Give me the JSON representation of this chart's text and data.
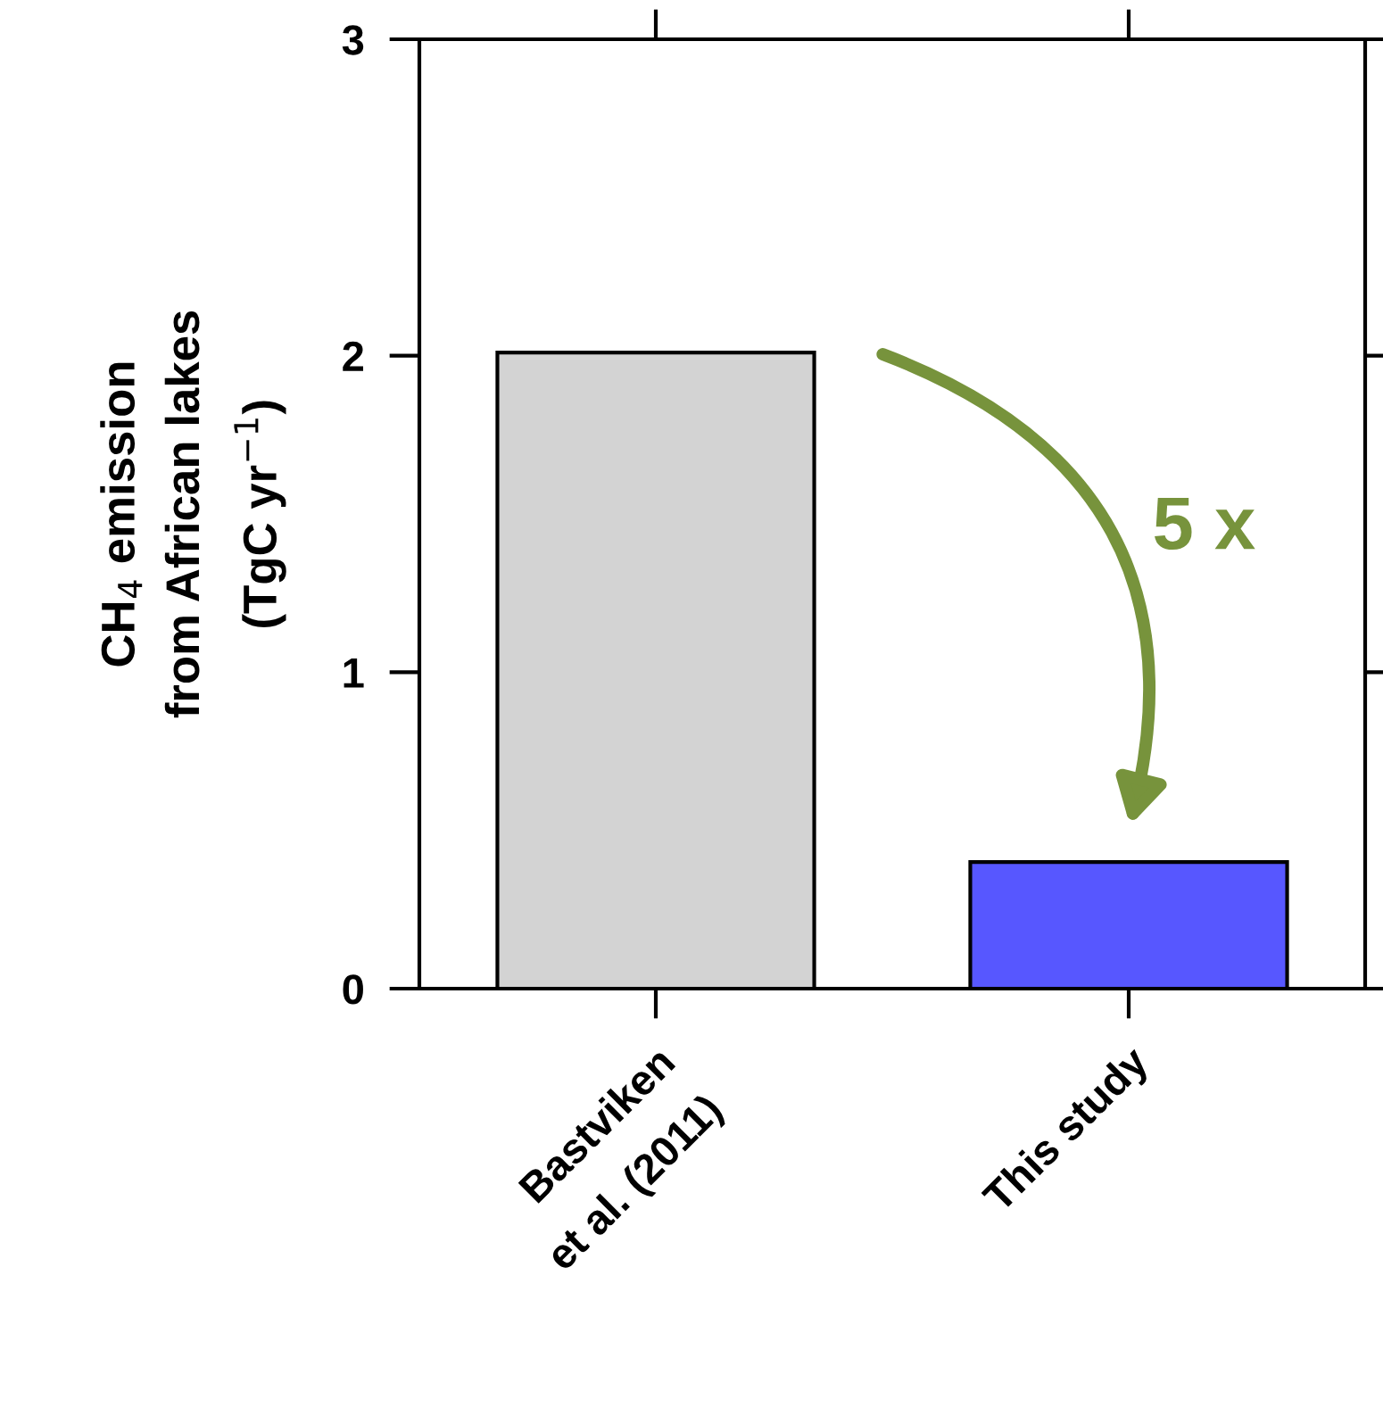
{
  "chart_data": {
    "type": "bar",
    "ylabel": "CH$_{4}$ emission\nfrom African lakes\n(TgC yr$^{−1}$)",
    "categories": [
      "Bastviken\net al. (2011)",
      "This study"
    ],
    "values": [
      2.01,
      0.4
    ],
    "colors": [
      "#d3d3d3",
      "#5757ff"
    ],
    "ylim": [
      0,
      3
    ],
    "yticks": [
      0,
      1,
      2,
      3
    ],
    "grid": false,
    "annotations": [
      "5 x"
    ]
  }
}
